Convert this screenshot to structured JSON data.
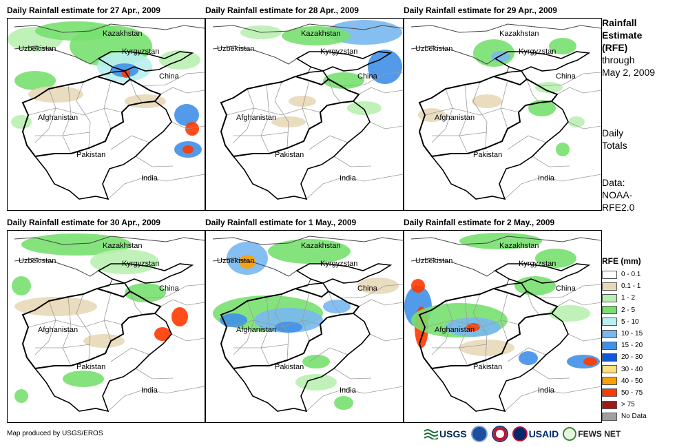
{
  "panels": [
    {
      "title": "Daily Rainfall estimate for 27 Apr., 2009"
    },
    {
      "title": "Daily Rainfall estimate for 28 Apr., 2009"
    },
    {
      "title": "Daily Rainfall estimate for 29 Apr., 2009"
    },
    {
      "title": "Daily Rainfall estimate for 30 Apr., 2009"
    },
    {
      "title": "Daily Rainfall estimate for 1 May., 2009"
    },
    {
      "title": "Daily Rainfall estimate for 2 May., 2009"
    }
  ],
  "map_labels": {
    "kazakhstan": "Kazakhstan",
    "uzbekistan": "Uzbekistan",
    "kyrgyzstan": "Kyrgyzstan",
    "china": "China",
    "afghanistan": "Afghanistan",
    "pakistan": "Pakistan",
    "india": "India"
  },
  "side": {
    "title_lines": [
      "Rainfall",
      "Estimate",
      "(RFE)"
    ],
    "through": "through",
    "date": "May 2, 2009",
    "totals_lines": [
      "Daily",
      "Totals"
    ],
    "data_lines": [
      "Data:",
      "NOAA-",
      "RFE2.0"
    ]
  },
  "legend": {
    "title": "RFE (mm)",
    "items": [
      {
        "label": "0 - 0.1",
        "color": "#ffffff"
      },
      {
        "label": "0.1 - 1",
        "color": "#e8d8b8"
      },
      {
        "label": "1 - 2",
        "color": "#b8f0b0"
      },
      {
        "label": "2 - 5",
        "color": "#78e070"
      },
      {
        "label": "5 - 10",
        "color": "#b8f0f0"
      },
      {
        "label": "10 - 15",
        "color": "#78b8f0"
      },
      {
        "label": "15 - 20",
        "color": "#4090e8"
      },
      {
        "label": "20 - 30",
        "color": "#1058d8"
      },
      {
        "label": "30 - 40",
        "color": "#ffe080"
      },
      {
        "label": "40 - 50",
        "color": "#ffa000"
      },
      {
        "label": "50 - 75",
        "color": "#ff3800"
      },
      {
        "label": "> 75",
        "color": "#a01818"
      },
      {
        "label": "No Data",
        "color": "#a0a0a0"
      }
    ]
  },
  "credit": "Map produced by USGS/EROS",
  "logos": {
    "usgs": "USGS",
    "usaid": "USAID",
    "fewsnet": "FEWS NET"
  }
}
